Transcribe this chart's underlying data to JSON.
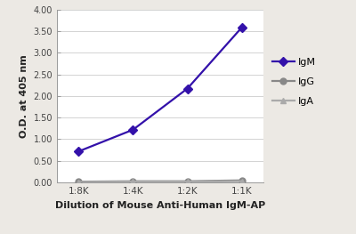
{
  "x_labels": [
    "1:8K",
    "1:4K",
    "1:2K",
    "1:1K"
  ],
  "x_values": [
    1,
    2,
    3,
    4
  ],
  "IgM_values": [
    0.72,
    1.22,
    2.17,
    3.58
  ],
  "IgG_values": [
    0.02,
    0.03,
    0.03,
    0.05
  ],
  "IgA_values": [
    0.01,
    0.02,
    0.02,
    0.03
  ],
  "IgM_color": "#3311aa",
  "IgG_color": "#888888",
  "IgA_color": "#aaaaaa",
  "xlabel": "Dilution of Mouse Anti-Human IgM-AP",
  "ylabel": "O.D. at 405 nm",
  "ylim": [
    0.0,
    4.0
  ],
  "yticks": [
    0.0,
    0.5,
    1.0,
    1.5,
    2.0,
    2.5,
    3.0,
    3.5,
    4.0
  ],
  "ytick_labels": [
    "0.00",
    "0.50",
    "1.00",
    "1.50",
    "2.00",
    "2.50",
    "3.00",
    "3.50",
    "4.00"
  ],
  "background_color": "#ece9e4",
  "plot_bg_color": "#ffffff",
  "linewidth": 1.6,
  "markersize": 5,
  "legend_labels": [
    "IgM",
    "IgG",
    "IgA"
  ]
}
